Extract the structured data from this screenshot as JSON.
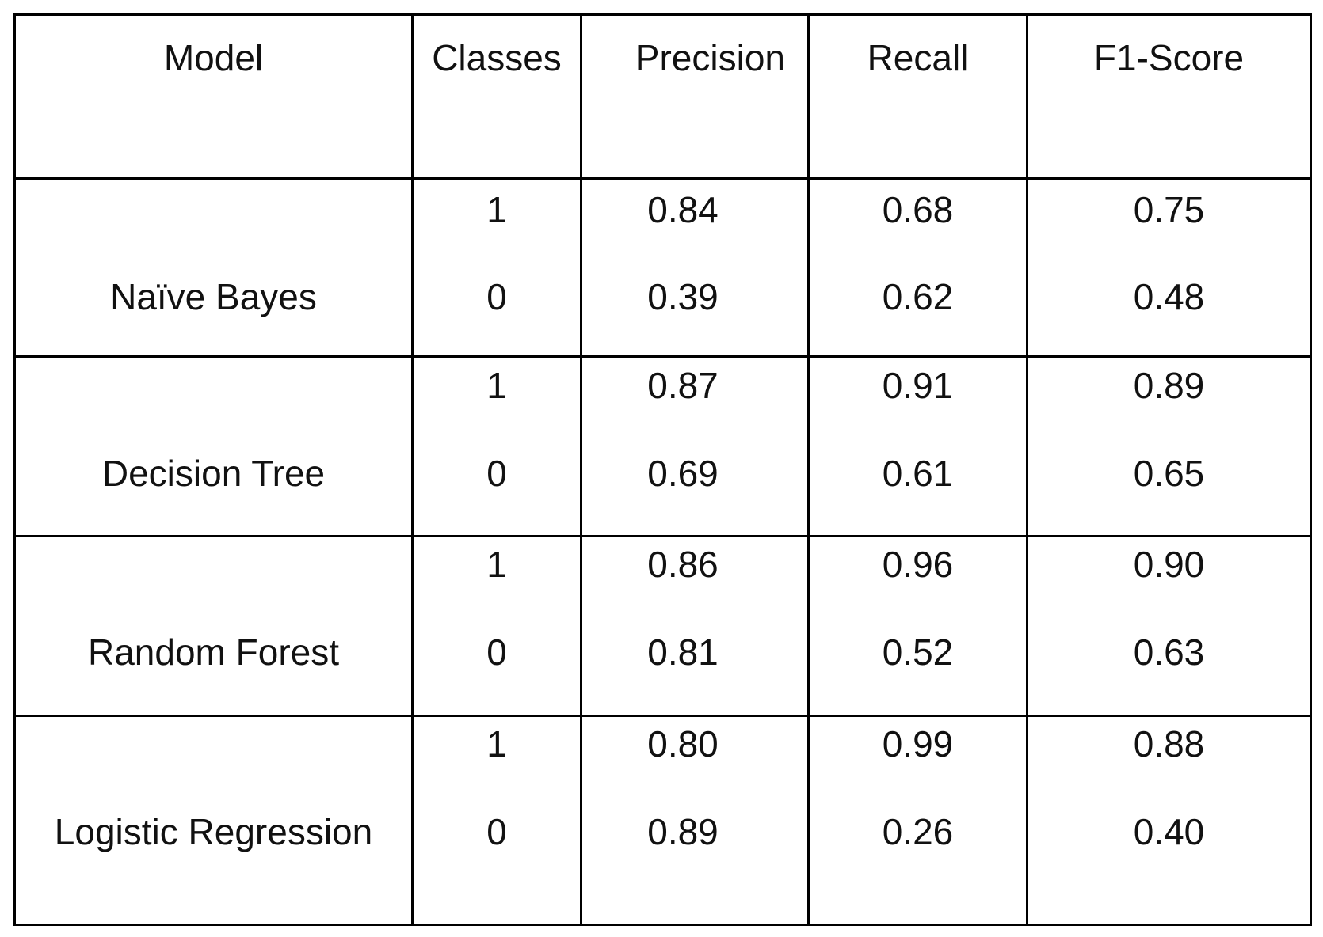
{
  "table": {
    "headers": [
      "Model",
      "Classes",
      "Precision",
      "Recall",
      "F1-Score"
    ],
    "groups": [
      {
        "model": "Naïve Bayes",
        "rows": [
          {
            "class": "1",
            "precision": "0.84",
            "recall": "0.68",
            "f1": "0.75"
          },
          {
            "class": "0",
            "precision": "0.39",
            "recall": "0.62",
            "f1": "0.48"
          }
        ]
      },
      {
        "model": "Decision Tree",
        "rows": [
          {
            "class": "1",
            "precision": "0.87",
            "recall": "0.91",
            "f1": "0.89"
          },
          {
            "class": "0",
            "precision": "0.69",
            "recall": "0.61",
            "f1": "0.65"
          }
        ]
      },
      {
        "model": "Random Forest",
        "rows": [
          {
            "class": "1",
            "precision": "0.86",
            "recall": "0.96",
            "f1": "0.90"
          },
          {
            "class": "0",
            "precision": "0.81",
            "recall": "0.52",
            "f1": "0.63"
          }
        ]
      },
      {
        "model": "Logistic Regression",
        "rows": [
          {
            "class": "1",
            "precision": "0.80",
            "recall": "0.99",
            "f1": "0.88"
          },
          {
            "class": "0",
            "precision": "0.89",
            "recall": "0.26",
            "f1": "0.40"
          }
        ]
      }
    ]
  }
}
